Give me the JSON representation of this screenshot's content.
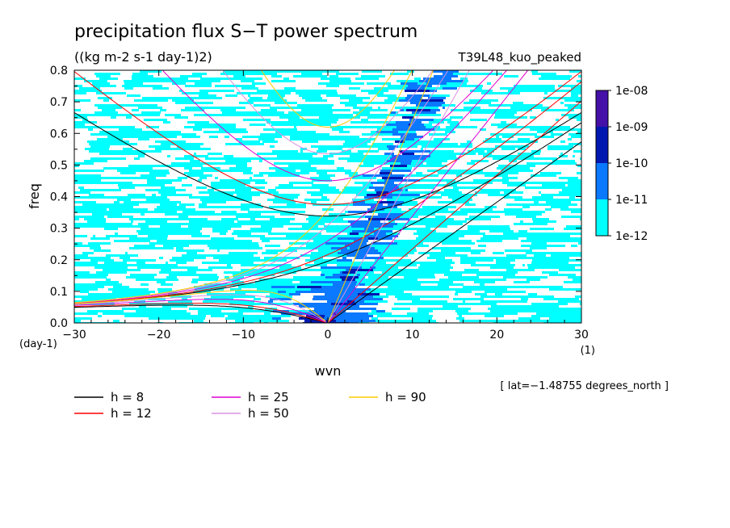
{
  "chart_data": {
    "type": "heatmap",
    "title": "precipitation flux S−T power spectrum",
    "subtitle": "((kg m-2 s-1 day-1)2)",
    "experiment": "T39L48_kuo_peaked",
    "xlabel": "wvn",
    "x_unit": "(1)",
    "ylabel": "freq",
    "y_unit": "(day-1)",
    "xlim": [
      -30,
      30
    ],
    "ylim": [
      0,
      0.8
    ],
    "x_ticks": [
      -30,
      -20,
      -10,
      0,
      10,
      20,
      30
    ],
    "x_tick_labels": [
      "−30",
      "−20",
      "−10",
      "0",
      "10",
      "20",
      "30"
    ],
    "y_ticks": [
      0.0,
      0.1,
      0.2,
      0.3,
      0.4,
      0.5,
      0.6,
      0.7,
      0.8
    ],
    "y_tick_labels": [
      "0.0",
      "0.1",
      "0.2",
      "0.3",
      "0.4",
      "0.5",
      "0.6",
      "0.7",
      "0.8"
    ],
    "colorbar": {
      "levels": [
        "1e-12",
        "1e-11",
        "1e-10",
        "1e-09",
        "1e-08"
      ],
      "colors": [
        "#00ffff",
        "#0a78ff",
        "#0018b0",
        "#4410a8"
      ]
    },
    "dispersion_curves": [
      {
        "label": "h =  8",
        "h": 8,
        "color": "#000000"
      },
      {
        "label": "h = 12",
        "h": 12,
        "color": "#ff0000"
      },
      {
        "label": "h = 25",
        "h": 25,
        "color": "#e000d0"
      },
      {
        "label": "h = 50",
        "h": 50,
        "color": "#d890e0"
      },
      {
        "label": "h = 90",
        "h": 90,
        "color": "#ffcc00"
      }
    ],
    "annotation": "[ lat=−1.48755 degrees_north ]",
    "grid": false,
    "legend_position": "bottom-left"
  }
}
